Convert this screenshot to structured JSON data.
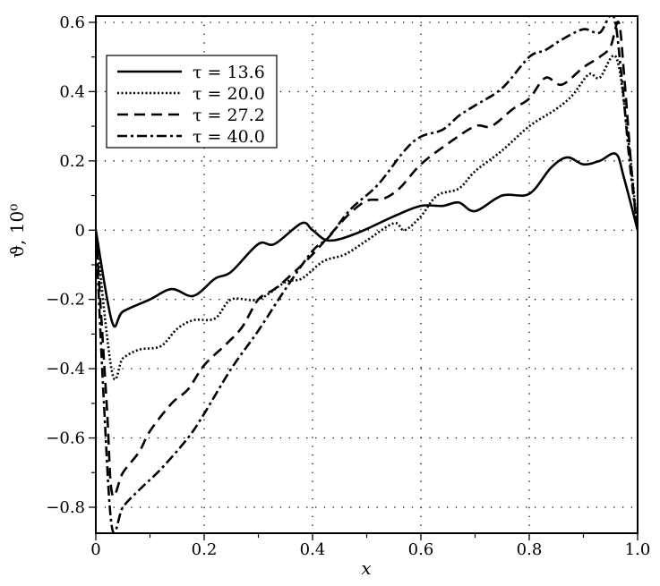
{
  "chart_data": {
    "type": "line",
    "title": "",
    "xlabel": "x",
    "ylabel": "ϑ, 10⁰",
    "xlim": [
      0,
      1.0
    ],
    "ylim": [
      -0.875,
      0.618
    ],
    "xticks": [
      0,
      0.2,
      0.4,
      0.6,
      0.8,
      1.0
    ],
    "xtick_labels": [
      "0",
      "0.2",
      "0.4",
      "0.6",
      "0.8",
      "1.0"
    ],
    "yticks": [
      -0.8,
      -0.6,
      -0.4,
      -0.2,
      0,
      0.2,
      0.4,
      0.6
    ],
    "ytick_labels": [
      "−0.8",
      "−0.6",
      "−0.4",
      "−0.2",
      "0",
      "0.2",
      "0.4",
      "0.6"
    ],
    "grid": true,
    "legend_position": "top-left",
    "series": [
      {
        "name": "τ = 13.6",
        "style": "solid",
        "x": [
          0,
          0.03,
          0.05,
          0.1,
          0.14,
          0.18,
          0.22,
          0.25,
          0.3,
          0.33,
          0.38,
          0.4,
          0.43,
          0.48,
          0.55,
          0.6,
          0.64,
          0.67,
          0.7,
          0.75,
          0.8,
          0.84,
          0.87,
          0.9,
          0.93,
          0.96,
          0.975,
          1.0
        ],
        "y": [
          0,
          -0.265,
          -0.235,
          -0.2,
          -0.17,
          -0.19,
          -0.14,
          -0.12,
          -0.04,
          -0.04,
          0.02,
          0.0,
          -0.03,
          -0.01,
          0.04,
          0.07,
          0.07,
          0.08,
          0.055,
          0.1,
          0.105,
          0.18,
          0.21,
          0.19,
          0.2,
          0.22,
          0.15,
          0.0
        ]
      },
      {
        "name": "τ = 20.0",
        "style": "dotted",
        "x": [
          0,
          0.03,
          0.05,
          0.08,
          0.12,
          0.15,
          0.18,
          0.22,
          0.25,
          0.3,
          0.35,
          0.38,
          0.42,
          0.46,
          0.5,
          0.55,
          0.57,
          0.6,
          0.63,
          0.67,
          0.7,
          0.75,
          0.8,
          0.85,
          0.88,
          0.91,
          0.93,
          0.96,
          0.98,
          1.0
        ],
        "y": [
          0,
          -0.41,
          -0.37,
          -0.345,
          -0.335,
          -0.285,
          -0.26,
          -0.255,
          -0.2,
          -0.2,
          -0.15,
          -0.14,
          -0.09,
          -0.07,
          -0.03,
          0.02,
          0.0,
          0.04,
          0.1,
          0.12,
          0.17,
          0.23,
          0.3,
          0.35,
          0.39,
          0.45,
          0.44,
          0.5,
          0.3,
          0.0
        ]
      },
      {
        "name": "τ = 27.2",
        "style": "dashed",
        "x": [
          0,
          0.02,
          0.03,
          0.05,
          0.08,
          0.1,
          0.14,
          0.17,
          0.2,
          0.24,
          0.27,
          0.3,
          0.33,
          0.36,
          0.4,
          0.44,
          0.47,
          0.5,
          0.53,
          0.56,
          0.6,
          0.65,
          0.7,
          0.73,
          0.77,
          0.8,
          0.83,
          0.86,
          0.9,
          0.93,
          0.95,
          0.965,
          0.975,
          0.99,
          1.0
        ],
        "y": [
          0,
          -0.5,
          -0.76,
          -0.7,
          -0.64,
          -0.58,
          -0.5,
          -0.46,
          -0.39,
          -0.33,
          -0.28,
          -0.2,
          -0.17,
          -0.13,
          -0.07,
          0.0,
          0.05,
          0.085,
          0.09,
          0.12,
          0.19,
          0.25,
          0.3,
          0.3,
          0.35,
          0.38,
          0.44,
          0.42,
          0.47,
          0.5,
          0.53,
          0.6,
          0.45,
          0.15,
          0.0
        ]
      },
      {
        "name": "τ = 40.0",
        "style": "dashdot",
        "x": [
          0,
          0.015,
          0.03,
          0.05,
          0.08,
          0.12,
          0.17,
          0.2,
          0.25,
          0.3,
          0.35,
          0.4,
          0.43,
          0.47,
          0.52,
          0.57,
          0.6,
          0.64,
          0.67,
          0.7,
          0.75,
          0.8,
          0.83,
          0.86,
          0.9,
          0.93,
          0.955,
          0.97,
          0.985,
          1.0
        ],
        "y": [
          0,
          -0.5,
          -0.86,
          -0.8,
          -0.75,
          -0.69,
          -0.6,
          -0.53,
          -0.4,
          -0.29,
          -0.17,
          -0.06,
          -0.02,
          0.06,
          0.13,
          0.23,
          0.27,
          0.29,
          0.33,
          0.36,
          0.41,
          0.5,
          0.52,
          0.55,
          0.58,
          0.57,
          0.62,
          0.45,
          0.2,
          0.0
        ]
      }
    ]
  }
}
